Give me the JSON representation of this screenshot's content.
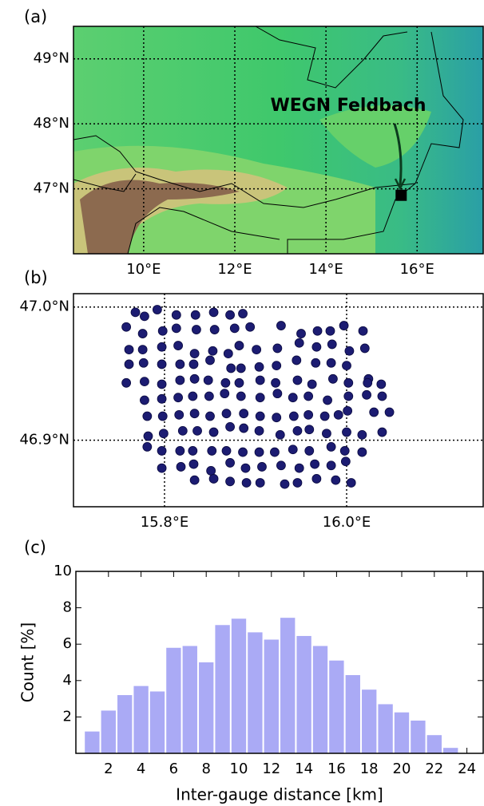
{
  "chart_data": [
    {
      "type": "map",
      "panel_label": "(a)",
      "annotation": "WEGN Feldbach",
      "xlim": [
        8.46,
        17.45
      ],
      "ylim": [
        46.0,
        49.5
      ],
      "xticks": [
        {
          "value": 10,
          "label": "10°E"
        },
        {
          "value": 12,
          "label": "12°E"
        },
        {
          "value": 14,
          "label": "14°E"
        },
        {
          "value": 16,
          "label": "16°E"
        }
      ],
      "yticks": [
        {
          "value": 47,
          "label": "47°N"
        },
        {
          "value": 48,
          "label": "48°N"
        },
        {
          "value": 49,
          "label": "49°N"
        }
      ],
      "grid": true,
      "marker": {
        "x": 15.65,
        "y": 46.9,
        "color": "#000000"
      }
    },
    {
      "type": "scatter",
      "panel_label": "(b)",
      "color": "#1c1c72",
      "xlim": [
        15.7,
        16.15
      ],
      "ylim": [
        46.85,
        47.01
      ],
      "xticks": [
        {
          "value": 15.8,
          "label": "15.8°E"
        },
        {
          "value": 16.0,
          "label": "16.0°E"
        }
      ],
      "yticks": [
        {
          "value": 46.9,
          "label": "46.9°N"
        },
        {
          "value": 47.0,
          "label": "47.0°N"
        }
      ],
      "grid": true,
      "x": [
        15.768,
        15.792,
        15.778,
        15.813,
        15.834,
        15.854,
        15.872,
        15.886,
        15.758,
        15.776,
        15.798,
        15.813,
        15.835,
        15.855,
        15.877,
        15.894,
        15.928,
        15.95,
        15.968,
        15.982,
        15.997,
        16.018,
        15.761,
        15.776,
        15.797,
        15.815,
        15.833,
        15.853,
        15.87,
        15.882,
        15.901,
        15.924,
        15.948,
        15.967,
        15.984,
        16.003,
        16.02,
        15.761,
        15.777,
        15.797,
        15.817,
        15.832,
        15.85,
        15.873,
        15.884,
        15.904,
        15.923,
        15.945,
        15.966,
        15.983,
        16.0,
        16.024,
        15.758,
        15.778,
        15.797,
        15.817,
        15.833,
        15.848,
        15.867,
        15.882,
        15.905,
        15.922,
        15.946,
        15.962,
        15.985,
        16.002,
        16.023,
        16.038,
        15.778,
        15.797,
        15.815,
        15.831,
        15.849,
        15.866,
        15.884,
        15.905,
        15.924,
        15.941,
        15.958,
        15.979,
        16.002,
        16.022,
        16.039,
        15.781,
        15.798,
        15.816,
        15.833,
        15.85,
        15.868,
        15.887,
        15.905,
        15.923,
        15.942,
        15.958,
        15.976,
        15.991,
        16.001,
        16.03,
        16.047,
        15.782,
        15.799,
        15.82,
        15.836,
        15.854,
        15.872,
        15.887,
        15.904,
        15.927,
        15.946,
        15.959,
        15.978,
        16.0,
        16.017,
        16.039,
        15.781,
        15.797,
        15.817,
        15.831,
        15.852,
        15.868,
        15.886,
        15.904,
        15.921,
        15.941,
        15.959,
        15.983,
        15.998,
        16.017,
        15.797,
        15.818,
        15.832,
        15.851,
        15.872,
        15.889,
        15.907,
        15.928,
        15.948,
        15.965,
        15.983,
        15.999,
        15.833,
        15.854,
        15.872,
        15.89,
        15.905,
        15.932,
        15.946,
        15.967,
        15.988,
        16.005
      ],
      "values": [
        46.996,
        46.998,
        46.993,
        46.994,
        46.994,
        46.996,
        46.994,
        46.995,
        46.985,
        46.98,
        46.982,
        46.984,
        46.983,
        46.983,
        46.984,
        46.985,
        46.986,
        46.98,
        46.982,
        46.982,
        46.986,
        46.982,
        46.968,
        46.968,
        46.97,
        46.971,
        46.965,
        46.967,
        46.965,
        46.971,
        46.968,
        46.969,
        46.973,
        46.97,
        46.972,
        46.967,
        46.969,
        46.957,
        46.958,
        46.957,
        46.957,
        46.957,
        46.96,
        46.954,
        46.954,
        46.955,
        46.956,
        46.96,
        46.958,
        46.958,
        46.956,
        46.946,
        46.943,
        46.944,
        46.942,
        46.945,
        46.946,
        46.945,
        46.943,
        46.943,
        46.945,
        46.943,
        46.945,
        46.942,
        46.946,
        46.943,
        46.943,
        46.942,
        46.93,
        46.931,
        46.932,
        46.933,
        46.933,
        46.935,
        46.933,
        46.932,
        46.935,
        46.932,
        46.933,
        46.93,
        46.933,
        46.934,
        46.933,
        46.918,
        46.918,
        46.919,
        46.92,
        46.918,
        46.92,
        46.92,
        46.918,
        46.917,
        46.918,
        46.919,
        46.918,
        46.919,
        46.922,
        46.921,
        46.921,
        46.903,
        46.905,
        46.907,
        46.907,
        46.906,
        46.91,
        46.909,
        46.907,
        46.904,
        46.907,
        46.908,
        46.905,
        46.906,
        46.904,
        46.906,
        46.895,
        46.892,
        46.892,
        46.892,
        46.892,
        46.892,
        46.891,
        46.891,
        46.891,
        46.893,
        46.892,
        46.895,
        46.892,
        46.891,
        46.879,
        46.88,
        46.882,
        46.877,
        46.883,
        46.879,
        46.88,
        46.881,
        46.879,
        46.882,
        46.881,
        46.884,
        46.87,
        46.871,
        46.869,
        46.868,
        46.868,
        46.867,
        46.868,
        46.871,
        46.87,
        46.868
      ]
    },
    {
      "type": "histogram",
      "panel_label": "(c)",
      "color": "#aaaaf5",
      "x_label": "Inter-gauge distance [km]",
      "y_label": "Count [%]",
      "xlim": [
        0,
        25
      ],
      "ylim": [
        0,
        10
      ],
      "xticks": [
        2,
        4,
        6,
        8,
        10,
        12,
        14,
        16,
        18,
        20,
        22,
        24
      ],
      "yticks": [
        2,
        4,
        6,
        8,
        10
      ],
      "bins": [
        0.5,
        1.5,
        2.5,
        3.5,
        4.5,
        5.5,
        6.5,
        7.5,
        8.5,
        9.5,
        10.5,
        11.5,
        12.5,
        13.5,
        14.5,
        15.5,
        16.5,
        17.5,
        18.5,
        19.5,
        20.5,
        21.5,
        22.5,
        23.5
      ],
      "values": [
        1.2,
        2.35,
        3.2,
        3.7,
        3.4,
        5.8,
        5.9,
        5.0,
        7.05,
        7.4,
        6.65,
        6.25,
        7.45,
        6.45,
        5.9,
        5.1,
        4.3,
        3.5,
        2.7,
        2.25,
        1.8,
        1.0,
        0.3
      ]
    }
  ]
}
